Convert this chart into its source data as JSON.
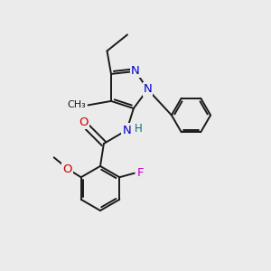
{
  "background_color": "#ebebeb",
  "bond_color": "#1a1a1a",
  "atom_colors": {
    "N": "#0000cc",
    "O": "#cc0000",
    "F": "#cc00cc",
    "C": "#1a1a1a",
    "H": "#007070"
  },
  "font_size": 8.5,
  "bond_width": 1.4,
  "figsize": [
    3.0,
    3.0
  ],
  "dpi": 100
}
